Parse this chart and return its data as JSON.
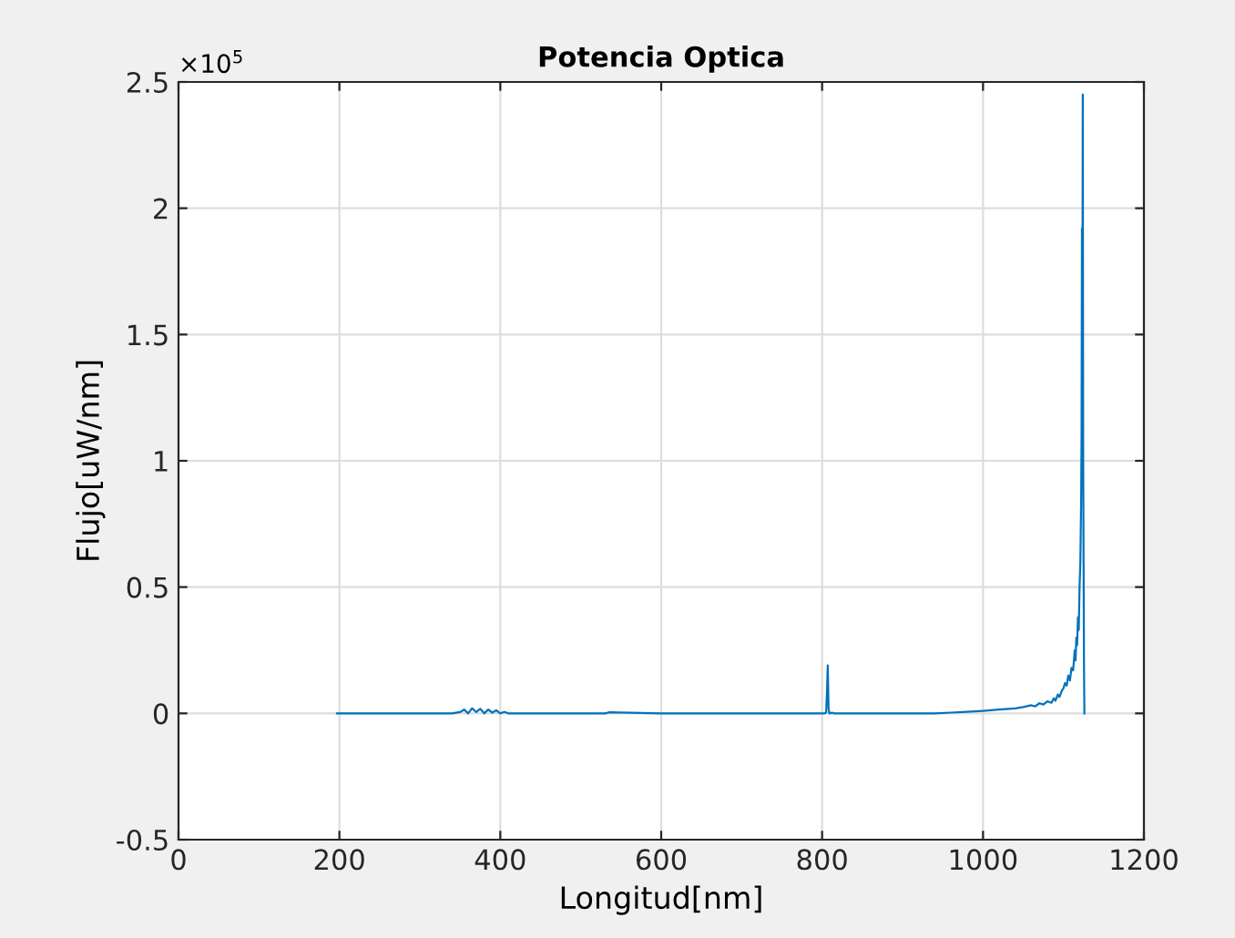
{
  "chart_data": {
    "type": "line",
    "title": "Potencia Optica",
    "xlabel": "Longitud[nm]",
    "ylabel": "Flujo[uW/nm]",
    "annotations": [
      "×10$^{5}$"
    ],
    "x": [
      197,
      250,
      300,
      340,
      350,
      355,
      360,
      365,
      370,
      375,
      380,
      385,
      390,
      395,
      400,
      405,
      410,
      450,
      500,
      530,
      535,
      600,
      700,
      780,
      800,
      803,
      805,
      806,
      807,
      808,
      809,
      810,
      812,
      815,
      850,
      900,
      940,
      960,
      980,
      1000,
      1020,
      1040,
      1050,
      1060,
      1065,
      1070,
      1075,
      1080,
      1085,
      1088,
      1090,
      1093,
      1095,
      1098,
      1100,
      1102,
      1104,
      1106,
      1108,
      1110,
      1112,
      1114,
      1115,
      1116,
      1117,
      1118,
      1119,
      1120,
      1121,
      1122,
      1122.5,
      1123,
      1123.5,
      1124,
      1124.5,
      1125,
      1125.5,
      1126
    ],
    "series": [
      {
        "color": "#0072bd",
        "values": [
          0,
          0,
          0,
          0,
          0.005,
          0.015,
          0,
          0.02,
          0.005,
          0.018,
          0,
          0.015,
          0.003,
          0.012,
          0,
          0.006,
          0,
          0,
          0,
          0,
          0.004,
          0,
          0,
          0,
          0,
          0,
          0.003,
          0.08,
          0.19,
          0.02,
          0,
          0,
          0.003,
          0,
          0,
          0,
          0,
          0.003,
          0.006,
          0.01,
          0.015,
          0.02,
          0.025,
          0.032,
          0.028,
          0.04,
          0.035,
          0.048,
          0.042,
          0.06,
          0.05,
          0.075,
          0.065,
          0.09,
          0.1,
          0.12,
          0.11,
          0.15,
          0.13,
          0.18,
          0.17,
          0.25,
          0.21,
          0.3,
          0.27,
          0.38,
          0.33,
          0.5,
          0.6,
          0.85,
          1.1,
          1.92,
          1.37,
          2.45,
          1.05,
          0.6,
          0.2,
          0
        ]
      }
    ],
    "xlim": [
      0,
      1200
    ],
    "xticks": [
      0,
      200,
      400,
      600,
      800,
      1000,
      1200
    ],
    "ylim": [
      -0.5,
      2.5
    ],
    "yticks": [
      -0.5,
      0,
      0.5,
      1,
      1.5,
      2,
      2.5
    ],
    "grid": true
  }
}
